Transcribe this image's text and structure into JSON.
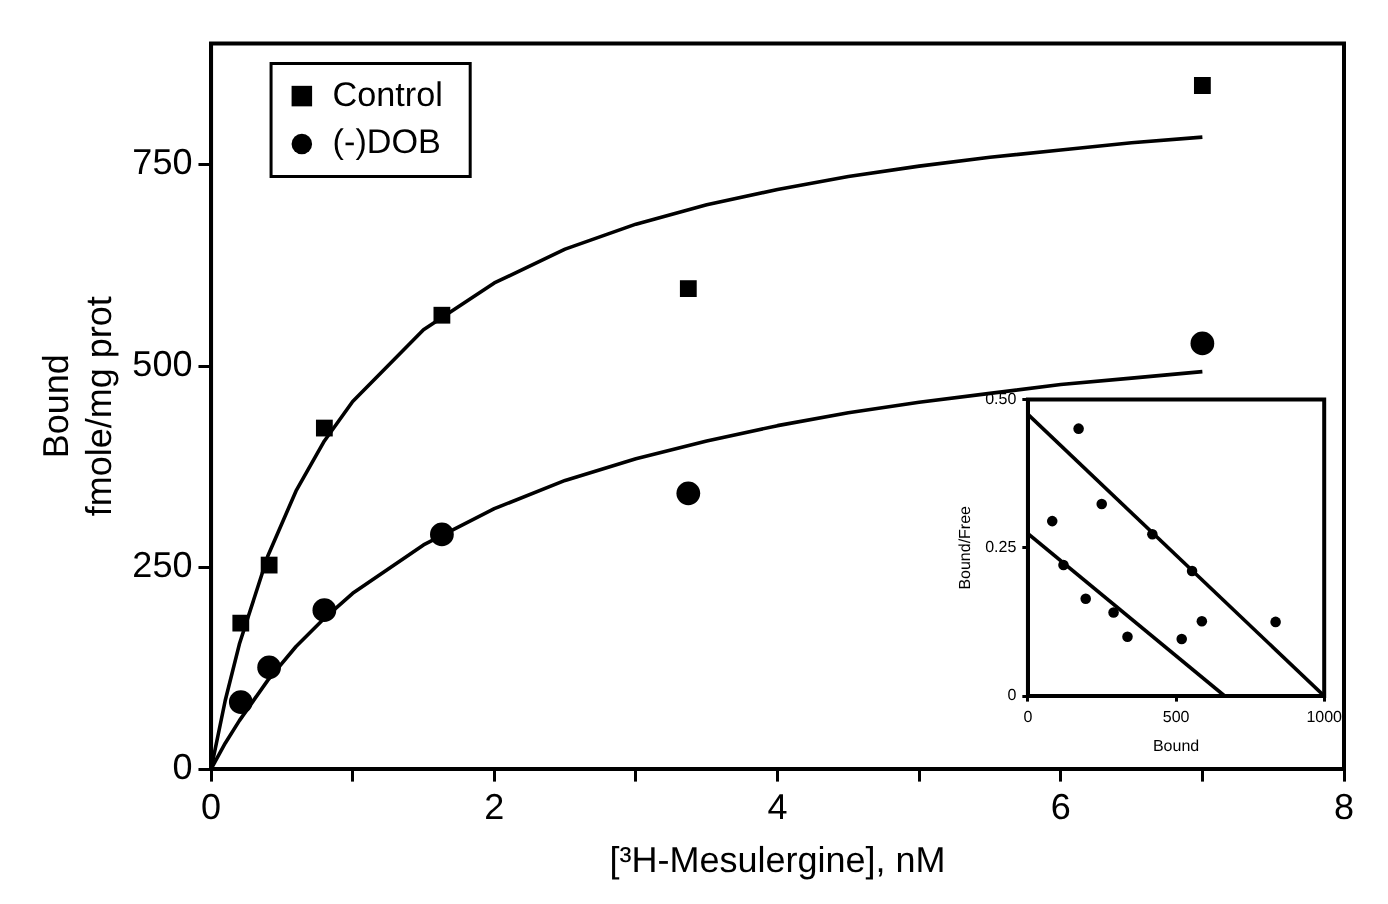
{
  "chart_data": [
    {
      "type": "scatter",
      "xlabel": "[³H-Mesulergine], nM",
      "ylabel": "Bound\nfmole/mg prot",
      "xlim": [
        0,
        8
      ],
      "xticks": [
        0,
        {
          "value": 1,
          "label": null
        },
        2,
        {
          "value": 3,
          "label": null
        },
        4,
        {
          "value": 5,
          "label": null
        },
        6,
        {
          "value": 7,
          "label": null
        },
        8
      ],
      "ylim": [
        0,
        900
      ],
      "yticks": [
        0,
        250,
        500,
        750
      ],
      "grid": false,
      "legend": "top left",
      "series": [
        {
          "name": "Control",
          "color": "#000000",
          "marker": "square",
          "x": [
            0.21,
            0.41,
            0.8,
            1.63,
            3.37,
            7.0
          ],
          "values": [
            181,
            253,
            423,
            563,
            596,
            848
          ]
        },
        {
          "name": "(-)DOB",
          "color": "#000000",
          "marker": "circle",
          "x": [
            0.21,
            0.41,
            0.8,
            1.63,
            3.37,
            7.0
          ],
          "values": [
            83,
            126,
            197,
            291,
            342,
            528
          ]
        },
        {
          "type": "line",
          "color": "#000000",
          "marker": "none",
          "x": [
            0,
            0.1,
            0.2,
            0.4,
            0.6,
            0.8,
            1,
            1.5,
            2,
            2.5,
            3,
            3.5,
            4,
            4.5,
            5,
            5.5,
            6,
            6.5,
            7
          ],
          "values": [
            0,
            85,
            155,
            264,
            345,
            407,
            456,
            545,
            603,
            645,
            676,
            700,
            719,
            735,
            748,
            759,
            768,
            777,
            784
          ]
        },
        {
          "type": "line",
          "color": "#000000",
          "marker": "none",
          "x": [
            0,
            0.1,
            0.2,
            0.4,
            0.6,
            0.8,
            1,
            1.5,
            2,
            2.5,
            3,
            3.5,
            4,
            4.5,
            5,
            5.5,
            6,
            6.5,
            7
          ],
          "values": [
            0,
            32,
            60,
            110,
            152,
            187,
            218,
            278,
            323,
            358,
            385,
            407,
            426,
            442,
            455,
            466,
            477,
            485,
            493
          ]
        }
      ]
    },
    {
      "type": "scatter",
      "xlabel": "Bound",
      "ylabel": "Bound/Free",
      "xlim": [
        0,
        1000
      ],
      "xticks": [
        0,
        500,
        1000
      ],
      "ylim": [
        0,
        0.5
      ],
      "yticks": [
        0,
        {
          "value": 0.25,
          "label": "0.25"
        },
        {
          "value": 0.5,
          "label": "0.50"
        }
      ],
      "grid": false,
      "series": [
        {
          "color": "#000000",
          "marker": "circle",
          "x": [
            171,
            82,
            249,
            120,
            195,
            420,
            289,
            554,
            336,
            587,
            519,
            836
          ],
          "values": [
            0.451,
            0.295,
            0.324,
            0.221,
            0.164,
            0.273,
            0.141,
            0.211,
            0.1,
            0.126,
            0.096,
            0.125
          ]
        },
        {
          "type": "line",
          "color": "#000000",
          "marker": "none",
          "x": [
            0,
            1000
          ],
          "values": [
            0.475,
            0
          ]
        },
        {
          "type": "line",
          "color": "#000000",
          "marker": "none",
          "x": [
            0,
            664
          ],
          "values": [
            0.274,
            0
          ]
        }
      ]
    }
  ]
}
